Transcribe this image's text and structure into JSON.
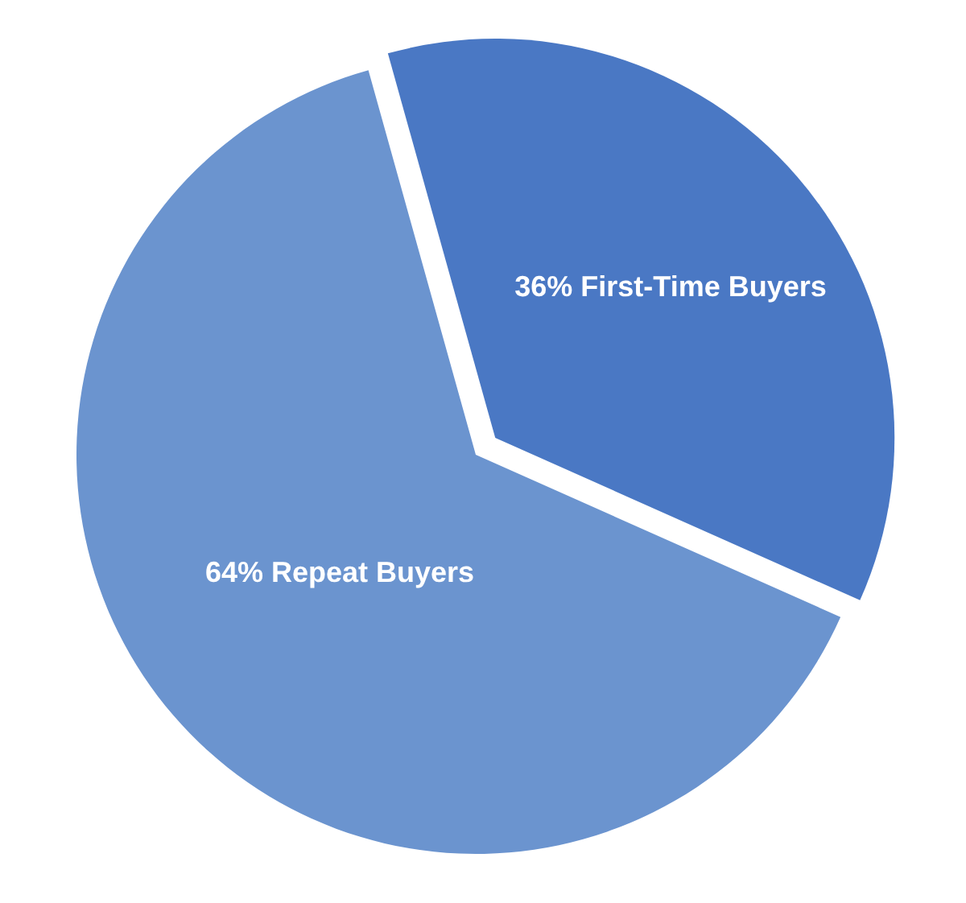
{
  "chart_data": {
    "type": "pie",
    "categories": [
      "First-Time Buyers",
      "Repeat Buyers"
    ],
    "values": [
      36,
      64
    ],
    "colors": [
      "#4a78c4",
      "#6b94cf"
    ],
    "value_labels": [
      "36%",
      "64%"
    ]
  }
}
